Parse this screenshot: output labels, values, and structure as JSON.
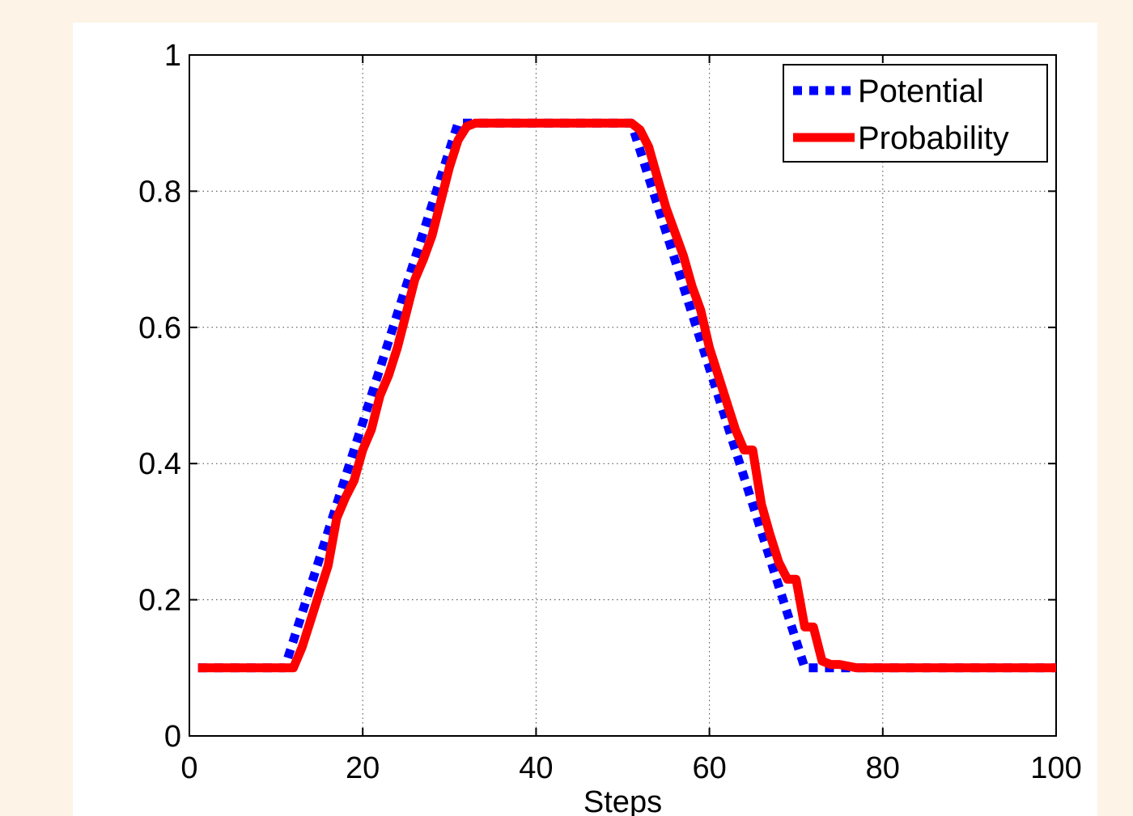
{
  "chart_data": {
    "type": "line",
    "title": "",
    "xlabel": "Steps",
    "ylabel": "",
    "xlim": [
      0,
      100
    ],
    "ylim": [
      0,
      1
    ],
    "xticks": [
      0,
      20,
      40,
      60,
      80,
      100
    ],
    "yticks": [
      0,
      0.2,
      0.4,
      0.6,
      0.8,
      1
    ],
    "xtick_labels": [
      "0",
      "20",
      "40",
      "60",
      "80",
      "100"
    ],
    "ytick_labels": [
      "0",
      "0.2",
      "0.4",
      "0.6",
      "0.8",
      "1"
    ],
    "grid": true,
    "legend_position": "top-right",
    "series": [
      {
        "name": "Potential",
        "color": "#0000ff",
        "style": "dotted",
        "x": [
          1,
          11,
          31,
          51,
          71,
          100
        ],
        "y": [
          0.1,
          0.1,
          0.9,
          0.9,
          0.1,
          0.1
        ]
      },
      {
        "name": "Probability",
        "color": "#ff0000",
        "style": "solid",
        "x": [
          1,
          12,
          13,
          14,
          15,
          16,
          17,
          18,
          19,
          20,
          21,
          22,
          23,
          24,
          25,
          26,
          27,
          28,
          29,
          30,
          31,
          32,
          33,
          50,
          51,
          52,
          53,
          54,
          55,
          56,
          57,
          58,
          59,
          60,
          61,
          62,
          63,
          64,
          65,
          66,
          67,
          68,
          69,
          70,
          71,
          72,
          73,
          74,
          75,
          77,
          100
        ],
        "y": [
          0.1,
          0.1,
          0.13,
          0.17,
          0.21,
          0.25,
          0.32,
          0.35,
          0.375,
          0.42,
          0.45,
          0.5,
          0.53,
          0.57,
          0.62,
          0.67,
          0.7,
          0.735,
          0.785,
          0.835,
          0.875,
          0.895,
          0.9,
          0.9,
          0.9,
          0.89,
          0.865,
          0.82,
          0.775,
          0.74,
          0.705,
          0.66,
          0.625,
          0.57,
          0.53,
          0.49,
          0.45,
          0.42,
          0.42,
          0.34,
          0.295,
          0.255,
          0.23,
          0.23,
          0.16,
          0.16,
          0.11,
          0.105,
          0.105,
          0.1,
          0.1
        ]
      }
    ]
  }
}
